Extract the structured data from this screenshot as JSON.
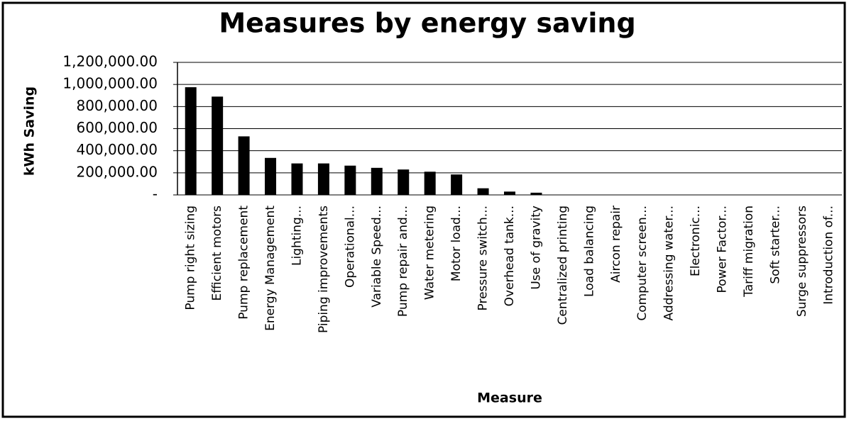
{
  "chart_data": {
    "type": "bar",
    "title": "Measures by energy saving",
    "x_label": "Measure",
    "y_label": "kWh Saving",
    "categories": [
      "Pump right sizing",
      "Efficient motors",
      "Pump replacement",
      "Energy Management",
      "Lighting...",
      "Piping improvements",
      "Operational...",
      "Variable Speed...",
      "Pump repair and...",
      "Water metering",
      "Motor load...",
      "Pressure switch...",
      "Overhead tank...",
      "Use of gravity",
      "Centralized printing",
      "Load balancing",
      "Aircon repair",
      "Computer screen...",
      "Addressing water...",
      "Electronic...",
      "Power Factor...",
      "Tariff migration",
      "Soft starter...",
      "Surge suppressors",
      "Introduction of..."
    ],
    "values": [
      975000,
      890000,
      530000,
      335000,
      285000,
      285000,
      265000,
      245000,
      230000,
      210000,
      185000,
      60000,
      30000,
      20000,
      0,
      0,
      0,
      0,
      0,
      0,
      0,
      0,
      0,
      0,
      0
    ],
    "color": "#000000",
    "ylim": [
      0,
      1200000
    ],
    "yticks": [
      {
        "value": 0,
        "label": "-"
      },
      {
        "value": 200000,
        "label": "200,000.00"
      },
      {
        "value": 400000,
        "label": "400,000.00"
      },
      {
        "value": 600000,
        "label": "600,000.00"
      },
      {
        "value": 800000,
        "label": "800,000.00"
      },
      {
        "value": 1000000,
        "label": "1,000,000.00"
      },
      {
        "value": 1200000,
        "label": "1,200,000.00"
      }
    ],
    "grid": true
  }
}
